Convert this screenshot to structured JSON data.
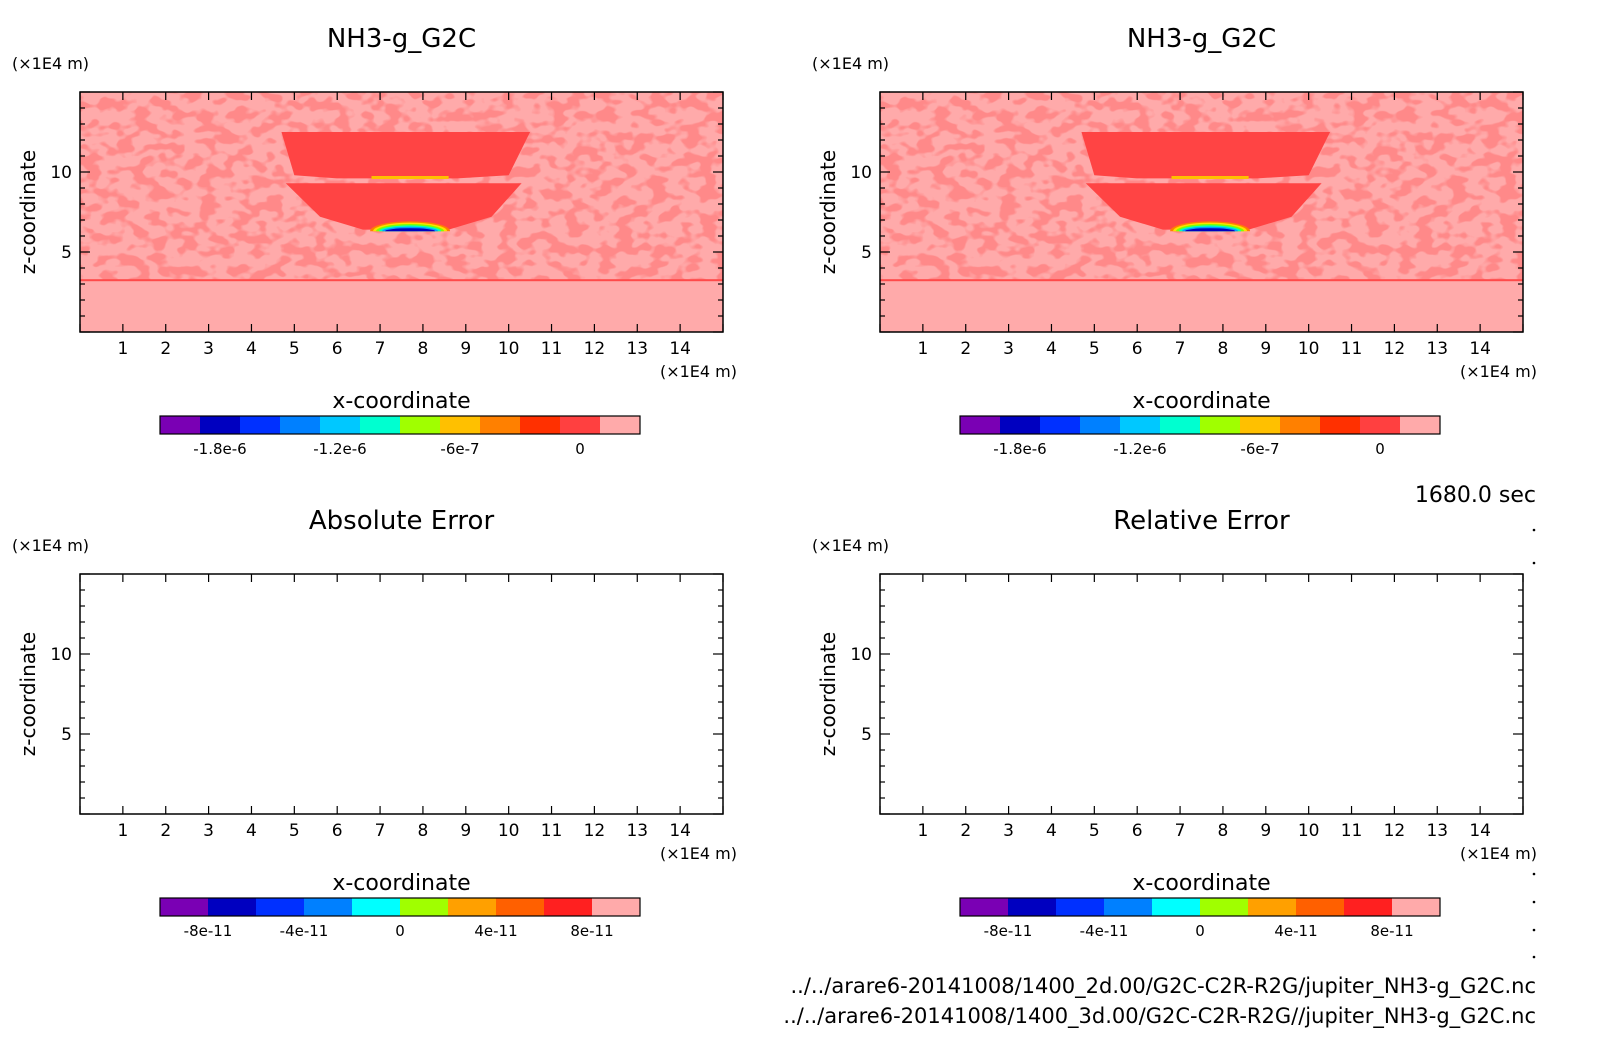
{
  "time_label": "1680.0 sec",
  "footer_lines": [
    "../../arare6-20141008/1400_2d.00/G2C-C2R-R2G/jupiter_NH3-g_G2C.nc",
    "../../arare6-20141008/1400_3d.00/G2C-C2R-R2G//jupiter_NH3-g_G2C.nc"
  ],
  "chart_data": [
    {
      "type": "heatmap",
      "title": "NH3-g_G2C",
      "xlabel": "x-coordinate",
      "ylabel": "z-coordinate",
      "x_unit": "(×1E4 m)",
      "y_unit": "(×1E4 m)",
      "xlim": [
        0,
        15
      ],
      "ylim": [
        0,
        15
      ],
      "x_ticks": [
        "1",
        "2",
        "3",
        "4",
        "5",
        "6",
        "7",
        "8",
        "9",
        "10",
        "11",
        "12",
        "13",
        "14"
      ],
      "y_ticks": [
        "5",
        "10"
      ],
      "colorbar": {
        "colors": [
          "#7a00b4",
          "#0000c0",
          "#0030ff",
          "#0080ff",
          "#00c8ff",
          "#00ffd0",
          "#a0ff00",
          "#ffc000",
          "#ff8000",
          "#ff3000",
          "#ff4040",
          "#ffaaaa"
        ],
        "tick_labels": [
          "-1.8e-6",
          "-1.2e-6",
          "-6e-7",
          "0"
        ]
      },
      "fill": "pattern"
    },
    {
      "type": "heatmap",
      "title": "NH3-g_G2C",
      "xlabel": "x-coordinate",
      "ylabel": "z-coordinate",
      "x_unit": "(×1E4 m)",
      "y_unit": "(×1E4 m)",
      "xlim": [
        0,
        15
      ],
      "ylim": [
        0,
        15
      ],
      "x_ticks": [
        "1",
        "2",
        "3",
        "4",
        "5",
        "6",
        "7",
        "8",
        "9",
        "10",
        "11",
        "12",
        "13",
        "14"
      ],
      "y_ticks": [
        "5",
        "10"
      ],
      "colorbar": {
        "colors": [
          "#7a00b4",
          "#0000c0",
          "#0030ff",
          "#0080ff",
          "#00c8ff",
          "#00ffd0",
          "#a0ff00",
          "#ffc000",
          "#ff8000",
          "#ff3000",
          "#ff4040",
          "#ffaaaa"
        ],
        "tick_labels": [
          "-1.8e-6",
          "-1.2e-6",
          "-6e-7",
          "0"
        ]
      },
      "fill": "pattern"
    },
    {
      "type": "heatmap",
      "title": "Absolute Error",
      "xlabel": "x-coordinate",
      "ylabel": "z-coordinate",
      "x_unit": "(×1E4 m)",
      "y_unit": "(×1E4 m)",
      "xlim": [
        0,
        15
      ],
      "ylim": [
        0,
        15
      ],
      "x_ticks": [
        "1",
        "2",
        "3",
        "4",
        "5",
        "6",
        "7",
        "8",
        "9",
        "10",
        "11",
        "12",
        "13",
        "14"
      ],
      "y_ticks": [
        "5",
        "10"
      ],
      "colorbar": {
        "colors": [
          "#7a00b4",
          "#0000c0",
          "#0030ff",
          "#0080ff",
          "#00ffff",
          "#a0ff00",
          "#ffa000",
          "#ff6000",
          "#ff2020",
          "#ffaaaa"
        ],
        "tick_labels": [
          "-8e-11",
          "-4e-11",
          "0",
          "4e-11",
          "8e-11"
        ]
      },
      "fill": "empty"
    },
    {
      "type": "heatmap",
      "title": "Relative Error",
      "xlabel": "x-coordinate",
      "ylabel": "z-coordinate",
      "x_unit": "(×1E4 m)",
      "y_unit": "(×1E4 m)",
      "xlim": [
        0,
        15
      ],
      "ylim": [
        0,
        15
      ],
      "x_ticks": [
        "1",
        "2",
        "3",
        "4",
        "5",
        "6",
        "7",
        "8",
        "9",
        "10",
        "11",
        "12",
        "13",
        "14"
      ],
      "y_ticks": [
        "5",
        "10"
      ],
      "colorbar": {
        "colors": [
          "#7a00b4",
          "#0000c0",
          "#0030ff",
          "#0080ff",
          "#00ffff",
          "#a0ff00",
          "#ffa000",
          "#ff6000",
          "#ff2020",
          "#ffaaaa"
        ],
        "tick_labels": [
          "-8e-11",
          "-4e-11",
          "0",
          "4e-11",
          "8e-11"
        ]
      },
      "fill": "empty"
    }
  ]
}
